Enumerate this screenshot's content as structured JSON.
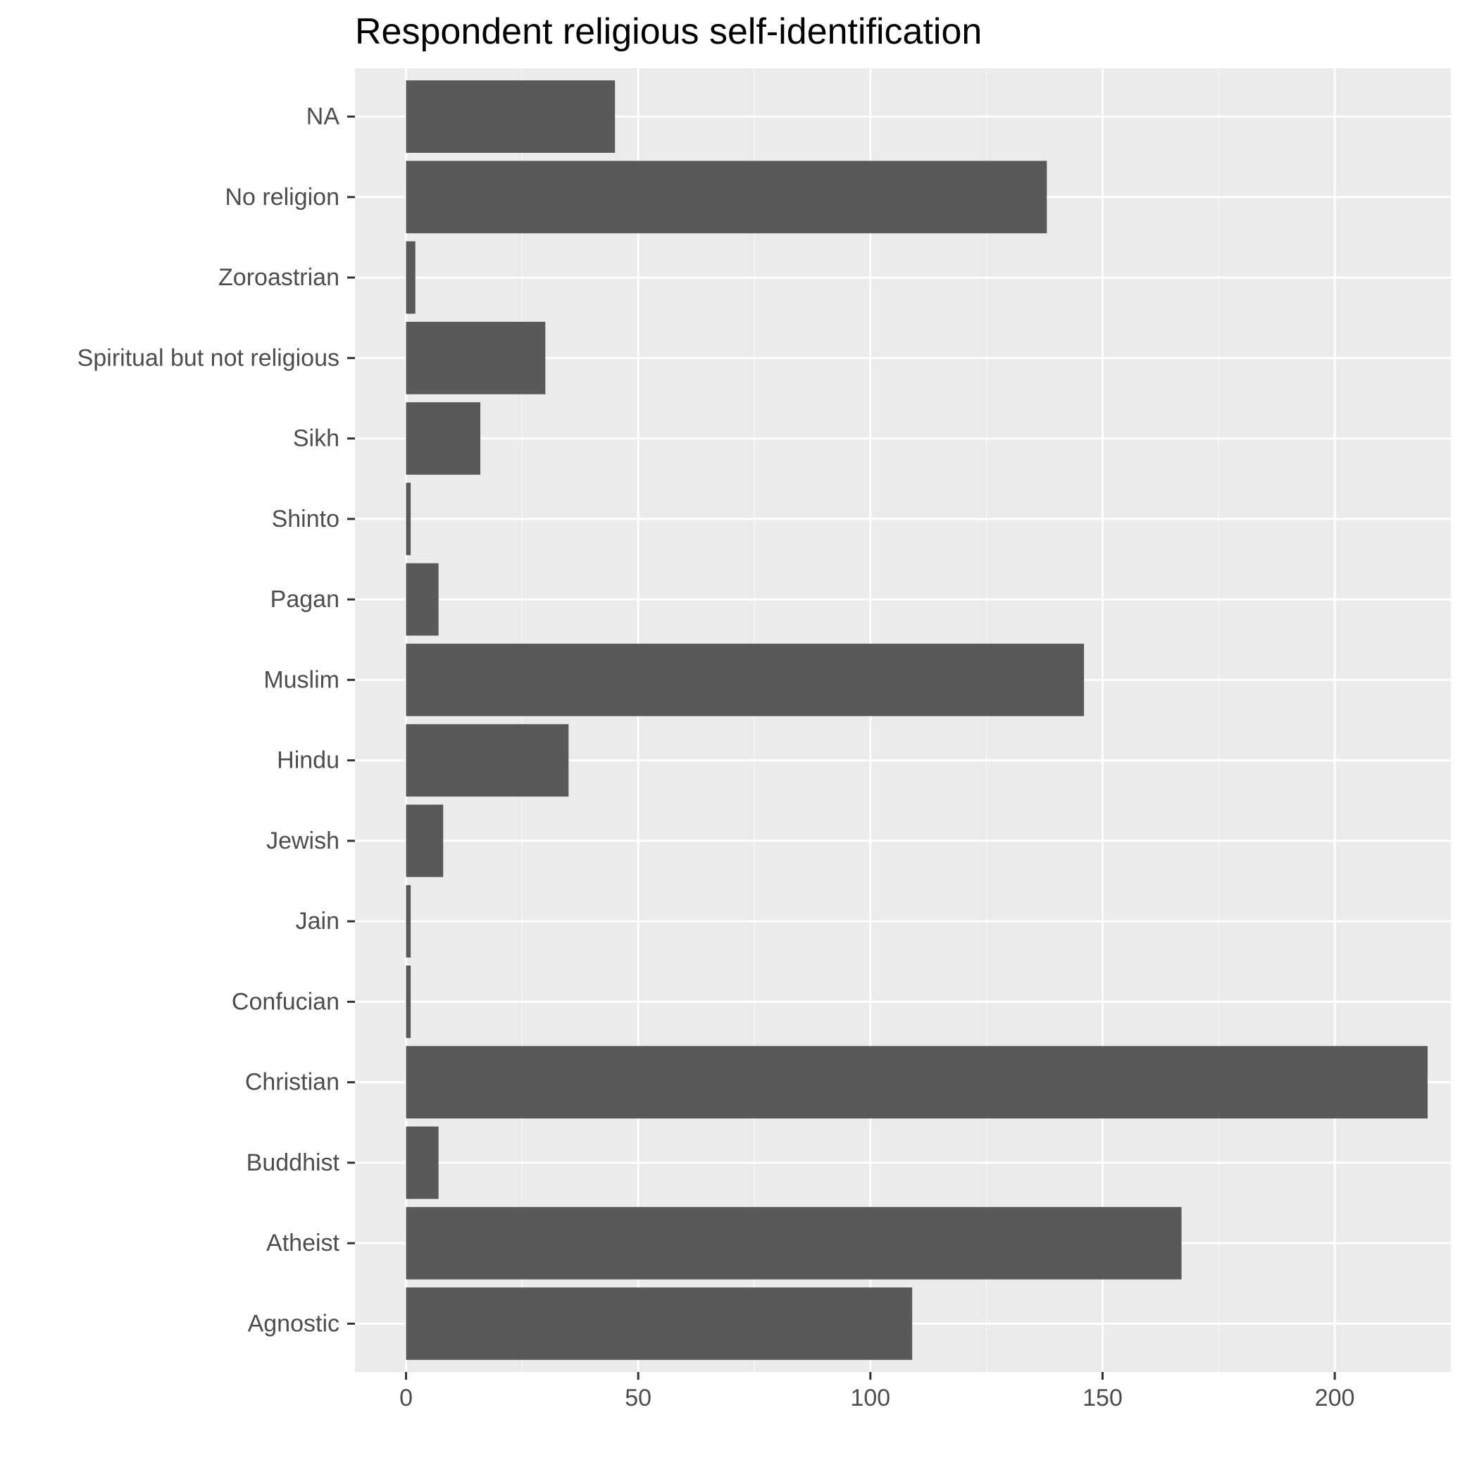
{
  "chart_data": {
    "type": "bar",
    "orientation": "horizontal",
    "title": "Respondent religious self-identification",
    "xlabel": "",
    "ylabel": "",
    "categories": [
      "Agnostic",
      "Atheist",
      "Buddhist",
      "Christian",
      "Confucian",
      "Jain",
      "Jewish",
      "Hindu",
      "Muslim",
      "Pagan",
      "Shinto",
      "Sikh",
      "Spiritual but not religious",
      "Zoroastrian",
      "No religion",
      "NA"
    ],
    "values": [
      109,
      167,
      7,
      220,
      1,
      1,
      8,
      35,
      146,
      7,
      1,
      16,
      30,
      2,
      138,
      45
    ],
    "xlim": [
      -11,
      225
    ],
    "x_ticks": [
      0,
      50,
      100,
      150,
      200
    ],
    "x_tick_labels": [
      "0",
      "50",
      "100",
      "150",
      "200"
    ],
    "grid": true,
    "legend": "none",
    "colors": {
      "bar": "#595959",
      "panel_background": "#ebebeb",
      "grid_major": "#ffffff",
      "grid_minor": "#f5f5f5",
      "axis_text": "#4d4d4d",
      "tick_mark": "#333333"
    }
  }
}
